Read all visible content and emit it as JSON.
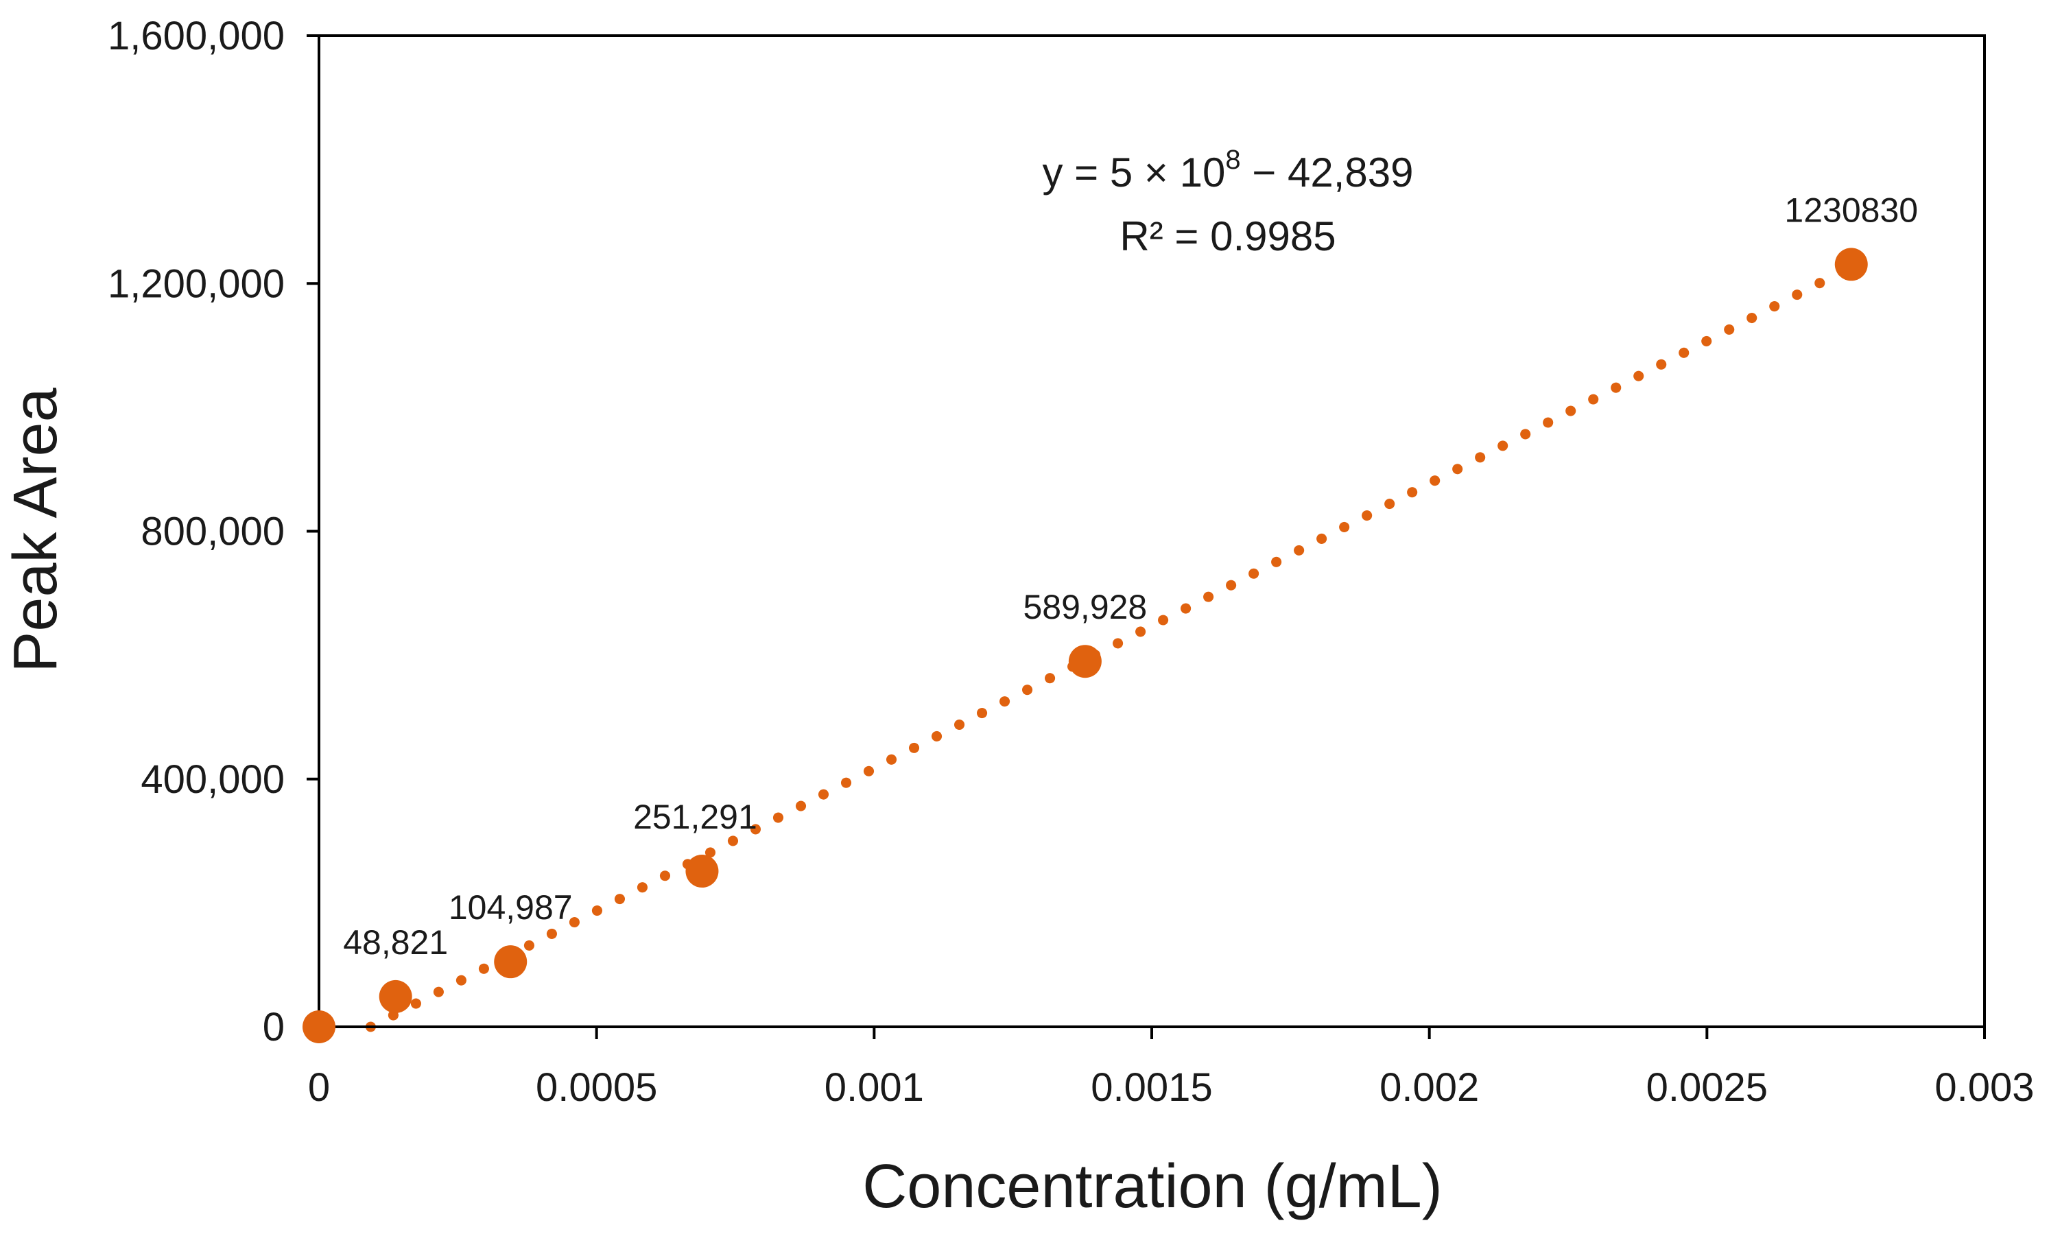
{
  "chart_data": {
    "type": "scatter",
    "title": "",
    "xlabel": "Concentration (g/mL)",
    "ylabel": "Peak Area",
    "xlim": [
      0,
      0.003
    ],
    "ylim": [
      0,
      1600000
    ],
    "x_ticks": [
      0,
      0.0005,
      0.001,
      0.0015,
      0.002,
      0.0025,
      0.003
    ],
    "x_tick_labels": [
      "0",
      "0.0005",
      "0.001",
      "0.0015",
      "0.002",
      "0.0025",
      "0.003"
    ],
    "y_ticks": [
      0,
      400000,
      800000,
      1200000,
      1600000
    ],
    "y_tick_labels": [
      "0",
      "400,000",
      "800,000",
      "1,200,000",
      "1,600,000"
    ],
    "grid": false,
    "legend": "none",
    "marker_color": "#E0620F",
    "series": [
      {
        "name": "Peak Area",
        "x": [
          0,
          0.000138,
          0.000345,
          0.00069,
          0.00138,
          0.00276
        ],
        "y": [
          0,
          48821,
          104987,
          251291,
          589928,
          1230830
        ],
        "labels": [
          "",
          "48,821",
          "104,987",
          "251,291",
          "589,928",
          "1230830"
        ]
      }
    ],
    "trendline": {
      "type": "linear",
      "style": "dotted",
      "slope": 460000000,
      "intercept": -42839,
      "x_range": [
        9.31e-05,
        0.00276
      ],
      "equation_prefix": "y = 5 × 10",
      "equation_exponent": "8",
      "equation_suffix": " − 42,839",
      "r_squared_text": "R² = 0.9985"
    }
  }
}
